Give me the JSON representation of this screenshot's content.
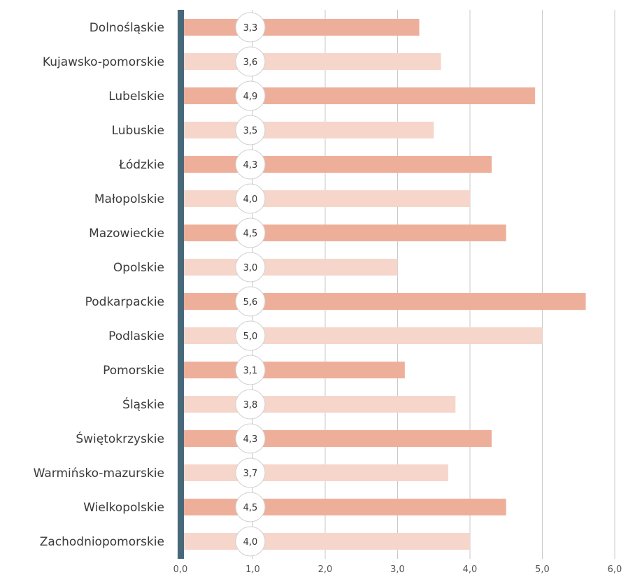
{
  "chart_data": {
    "type": "bar",
    "orientation": "horizontal",
    "categories": [
      "Dolnośląskie",
      "Kujawsko-pomorskie",
      "Lubelskie",
      "Lubuskie",
      "Łódzkie",
      "Małopolskie",
      "Mazowieckie",
      "Opolskie",
      "Podkarpackie",
      "Podlaskie",
      "Pomorskie",
      "Śląskie",
      "Świętokrzyskie",
      "Warmińsko-mazurskie",
      "Wielkopolskie",
      "Zachodniopomorskie"
    ],
    "values": [
      3.3,
      3.6,
      4.9,
      3.5,
      4.3,
      4.0,
      4.5,
      3.0,
      5.6,
      5.0,
      3.1,
      3.8,
      4.3,
      3.7,
      4.5,
      4.0
    ],
    "value_labels": [
      "3,3",
      "3,6",
      "4,9",
      "3,5",
      "4,3",
      "4,0",
      "4,5",
      "3,0",
      "5,6",
      "5,0",
      "3,1",
      "3,8",
      "4,3",
      "3,7",
      "4,5",
      "4,0"
    ],
    "x_ticks": [
      "0,0",
      "1,0",
      "2,0",
      "3,0",
      "4,0",
      "5,0",
      "6,0"
    ],
    "xlim": [
      0,
      6
    ],
    "grid": true,
    "title": "",
    "xlabel": "",
    "ylabel": "",
    "colors": {
      "bar_dark": "#eeaf9a",
      "bar_light": "#f6d6cb",
      "axis_bar": "#476878",
      "grid": "#c9c9c9"
    }
  }
}
